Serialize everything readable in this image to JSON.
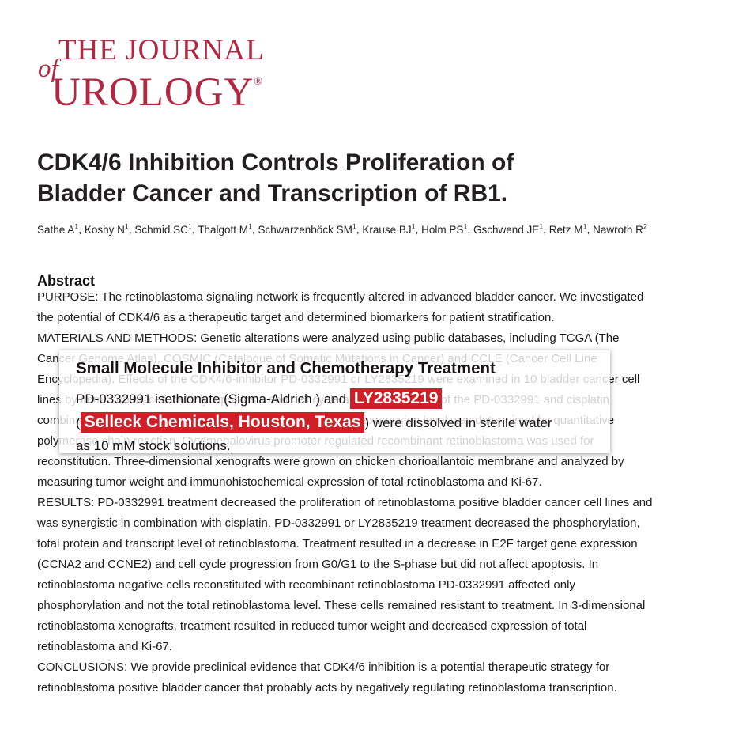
{
  "colors": {
    "logo_red": "#b22742",
    "highlight_red": "#ce2026",
    "title_text": "#231f20",
    "body_text": "#1c1c1c"
  },
  "journal": {
    "logo_of": "of",
    "logo_line1": "THE JOURNAL",
    "logo_line2": "UROLOGY",
    "registered_mark": "®"
  },
  "article": {
    "title_lines": [
      "CDK4/6 Inhibition Controls Proliferation of",
      "Bladder Cancer and Transcription of RB1."
    ],
    "authors": [
      {
        "name": "Sathe A",
        "sup": "1"
      },
      {
        "name": "Koshy N",
        "sup": "1"
      },
      {
        "name": "Schmid SC",
        "sup": "1"
      },
      {
        "name": "Thalgott M",
        "sup": "1"
      },
      {
        "name": "Schwarzenböck SM",
        "sup": "1"
      },
      {
        "name": "Krause BJ",
        "sup": "1"
      },
      {
        "name": "Holm PS",
        "sup": "1"
      },
      {
        "name": "Gschwend JE",
        "sup": "1"
      },
      {
        "name": "Retz M",
        "sup": "1"
      },
      {
        "name": "Nawroth R",
        "sup": "2"
      }
    ]
  },
  "abstract": {
    "heading": "Abstract",
    "lines": [
      "PURPOSE: The retinoblastoma signaling network is frequently altered in advanced bladder cancer. We investigated",
      "the potential of CDK4/6 as a therapeutic target and determined biomarkers for patient stratification.",
      "MATERIALS AND METHODS: Genetic alterations were analyzed using public databases, including TCGA (The",
      "Cancer Genome Atlas), COSMIC (Catalogue of Somatic Mutations in Cancer) and CCLE (Cancer Cell Line",
      "Encyclopedia). Effects of the CDK4/6-inhibitor PD-0332991 or LY2835219 were examined in 10 bladder cancer cell",
      "lines by immunoblot, cell viability, apoptosis and cell cycle analyses. Efficacy of the PD-0332991 and cisplatin",
      "combination was determined by combination index. The gene expression level was determined by quantitative",
      "polymerase chain reaction. Cytomegalovirus promoter regulated recombinant retinoblastoma was used for",
      "reconstitution. Three-dimensional xenografts were grown on chicken chorioallantoic membrane and analyzed by",
      "measuring tumor weight and immunohistochemical expression of total retinoblastoma and Ki-67.",
      "RESULTS: PD-0332991 treatment decreased the proliferation of retinoblastoma positive bladder cancer cell lines and",
      "was synergistic in combination with cisplatin. PD-0332991 or LY2835219 treatment decreased the phosphorylation,",
      "total protein and transcript level of retinoblastoma. Treatment resulted in a decrease in E2F target gene expression",
      "(CCNA2 and CCNE2) and cell cycle progression from G0/G1 to the S-phase but did not affect apoptosis. In",
      "retinoblastoma negative cells reconstituted with recombinant retinoblastoma PD-0332991 affected only",
      "phosphorylation and not the total retinoblastoma level. These cells remained resistant to treatment. In 3-dimensional",
      "retinoblastoma xenografts, treatment resulted in reduced tumor weight and decreased expression of total",
      "retinoblastoma and Ki-67.",
      "CONCLUSIONS: We provide preclinical evidence that CDK4/6 inhibition is a potential therapeutic strategy for",
      "retinoblastoma positive bladder cancer that probably acts by negatively regulating retinoblastoma transcription."
    ]
  },
  "overlay": {
    "title": "Small Molecule Inhibitor and Chemotherapy Treatment",
    "line1_prefix": "PD-0332991 isethionate (Sigma-Aldrich ) and ",
    "highlight1": "LY2835219",
    "line2_prefix": "(",
    "highlight2": "Selleck Chemicals, Houston, Texas",
    "line2_suffix": ") were dissolved in sterile water",
    "line3": "as 10 mM stock solutions."
  }
}
